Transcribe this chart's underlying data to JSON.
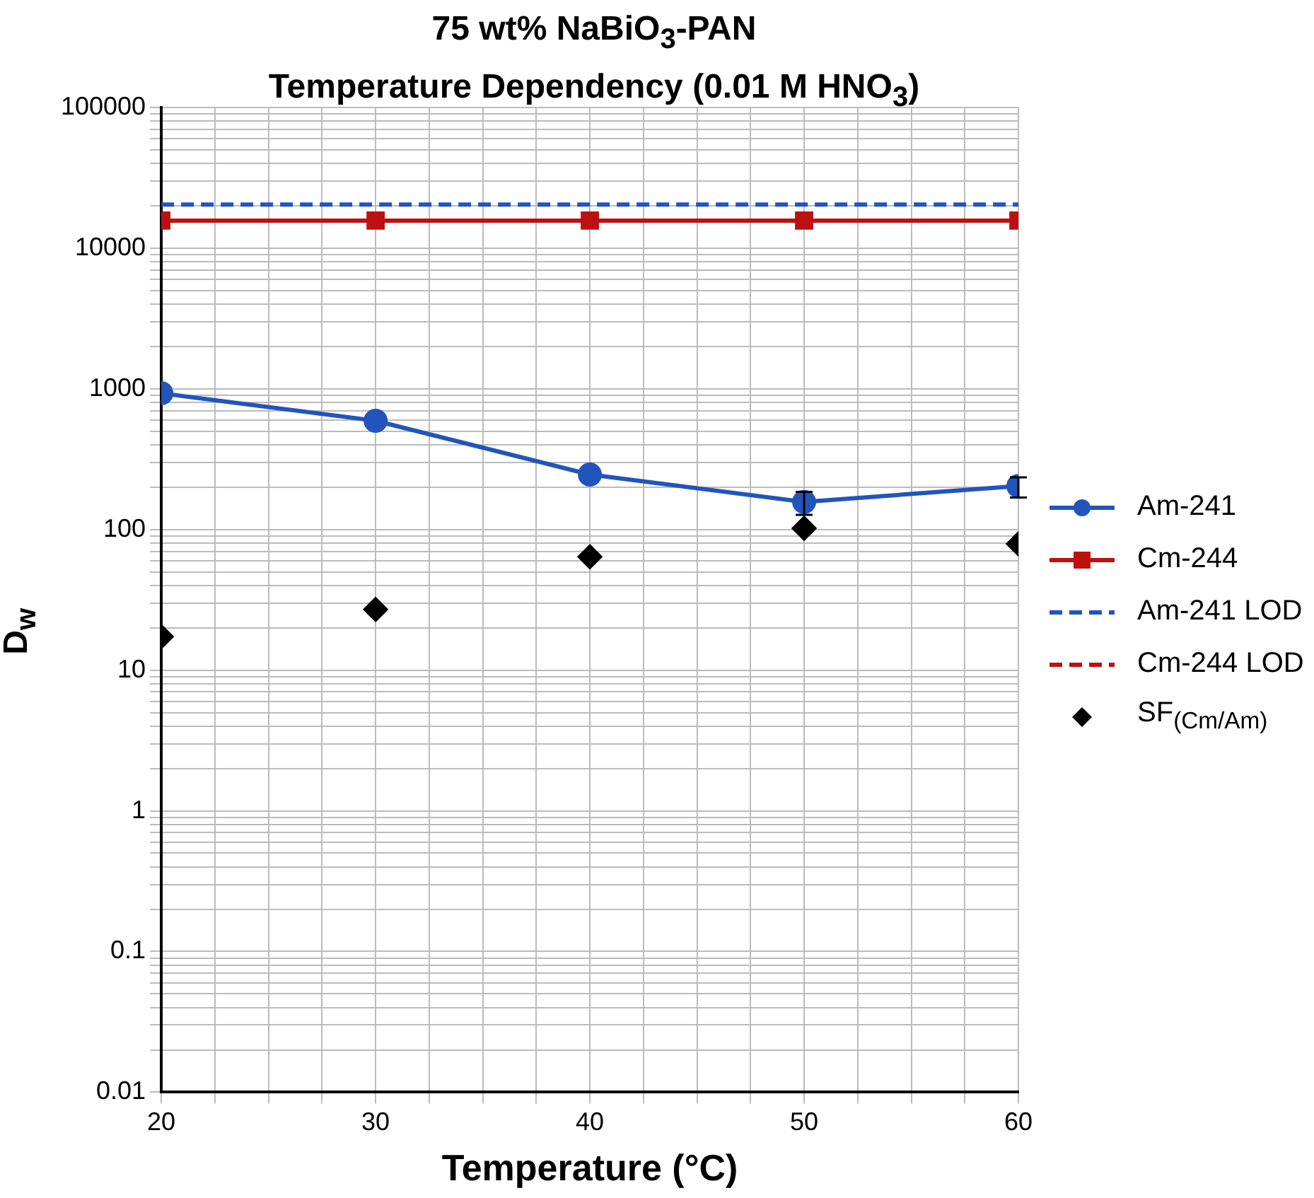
{
  "chart_data": {
    "type": "line",
    "title": "75 wt% NaBiO$_{3}$-PAN\nTemperature Dependency (0.01 M HNO$_{3}$)",
    "xlabel": "Temperature (°C)",
    "ylabel": "D$_{w}$",
    "x": [
      20,
      30,
      40,
      50,
      60
    ],
    "series": [
      {
        "name": "Am-241",
        "type": "line",
        "color": "#2255bb",
        "marker": "circle",
        "line_style": "solid",
        "values": [
          930,
          593,
          246,
          157,
          204
        ],
        "errors": [
          null,
          null,
          null,
          [
            127,
            185
          ],
          [
            169,
            235
          ]
        ]
      },
      {
        "name": "Cm-244",
        "type": "line",
        "color": "#bb1111",
        "marker": "square",
        "line_style": "solid",
        "values": [
          15700,
          15700,
          15700,
          15700,
          15700
        ]
      },
      {
        "name": "Am-241 LOD",
        "type": "line",
        "color": "#2255bb",
        "marker": "none",
        "line_style": "dashed",
        "values": [
          20400,
          20400,
          20400,
          20400,
          20400
        ]
      },
      {
        "name": "Cm-244 LOD",
        "type": "line",
        "color": "#bb1111",
        "marker": "none",
        "line_style": "dashed",
        "values": [
          null,
          null,
          null,
          null,
          null
        ]
      },
      {
        "name": "SF$_{(Cm/Am)}$",
        "type": "scatter",
        "color": "#000000",
        "marker": "diamond",
        "values": [
          17.3,
          27,
          64,
          102,
          79
        ]
      }
    ],
    "xlim": [
      20,
      60
    ],
    "xticks": [
      20,
      {
        "value": 22.5,
        "label": null
      },
      {
        "value": 25,
        "label": null
      },
      {
        "value": 27.5,
        "label": null
      },
      30,
      {
        "value": 32.5,
        "label": null
      },
      {
        "value": 35,
        "label": null
      },
      {
        "value": 37.5,
        "label": null
      },
      40,
      {
        "value": 42.5,
        "label": null
      },
      {
        "value": 45,
        "label": null
      },
      {
        "value": 47.5,
        "label": null
      },
      50,
      {
        "value": 52.5,
        "label": null
      },
      {
        "value": 55,
        "label": null
      },
      {
        "value": 57.5,
        "label": null
      },
      60
    ],
    "ylim": [
      0.01,
      100000
    ],
    "yticks": [
      0.01,
      {
        "value": 0.02,
        "label": null
      },
      {
        "value": 0.03,
        "label": null
      },
      {
        "value": 0.04,
        "label": null
      },
      {
        "value": 0.05,
        "label": null
      },
      {
        "value": 0.06,
        "label": null
      },
      {
        "value": 0.07,
        "label": null
      },
      {
        "value": 0.08,
        "label": null
      },
      {
        "value": 0.09,
        "label": null
      },
      0.1,
      {
        "value": 0.2,
        "label": null
      },
      {
        "value": 0.3,
        "label": null
      },
      {
        "value": 0.4,
        "label": null
      },
      {
        "value": 0.5,
        "label": null
      },
      {
        "value": 0.6,
        "label": null
      },
      {
        "value": 0.7,
        "label": null
      },
      {
        "value": 0.8,
        "label": null
      },
      {
        "value": 0.9,
        "label": null
      },
      1,
      {
        "value": 2,
        "label": null
      },
      {
        "value": 3,
        "label": null
      },
      {
        "value": 4,
        "label": null
      },
      {
        "value": 5,
        "label": null
      },
      {
        "value": 6,
        "label": null
      },
      {
        "value": 7,
        "label": null
      },
      {
        "value": 8,
        "label": null
      },
      {
        "value": 9,
        "label": null
      },
      10,
      {
        "value": 20,
        "label": null
      },
      {
        "value": 30,
        "label": null
      },
      {
        "value": 40,
        "label": null
      },
      {
        "value": 50,
        "label": null
      },
      {
        "value": 60,
        "label": null
      },
      {
        "value": 70,
        "label": null
      },
      {
        "value": 80,
        "label": null
      },
      {
        "value": 90,
        "label": null
      },
      100,
      {
        "value": 200,
        "label": null
      },
      {
        "value": 300,
        "label": null
      },
      {
        "value": 400,
        "label": null
      },
      {
        "value": 500,
        "label": null
      },
      {
        "value": 600,
        "label": null
      },
      {
        "value": 700,
        "label": null
      },
      {
        "value": 800,
        "label": null
      },
      {
        "value": 900,
        "label": null
      },
      1000,
      {
        "value": 2000,
        "label": null
      },
      {
        "value": 3000,
        "label": null
      },
      {
        "value": 4000,
        "label": null
      },
      {
        "value": 5000,
        "label": null
      },
      {
        "value": 6000,
        "label": null
      },
      {
        "value": 7000,
        "label": null
      },
      {
        "value": 8000,
        "label": null
      },
      {
        "value": 9000,
        "label": null
      },
      10000,
      {
        "value": 20000,
        "label": null
      },
      {
        "value": 30000,
        "label": null
      },
      {
        "value": 40000,
        "label": null
      },
      {
        "value": 50000,
        "label": null
      },
      {
        "value": 60000,
        "label": null
      },
      {
        "value": 70000,
        "label": null
      },
      {
        "value": 80000,
        "label": null
      },
      {
        "value": 90000,
        "label": null
      },
      100000
    ],
    "log": "y",
    "grid": true,
    "legend": "right"
  }
}
